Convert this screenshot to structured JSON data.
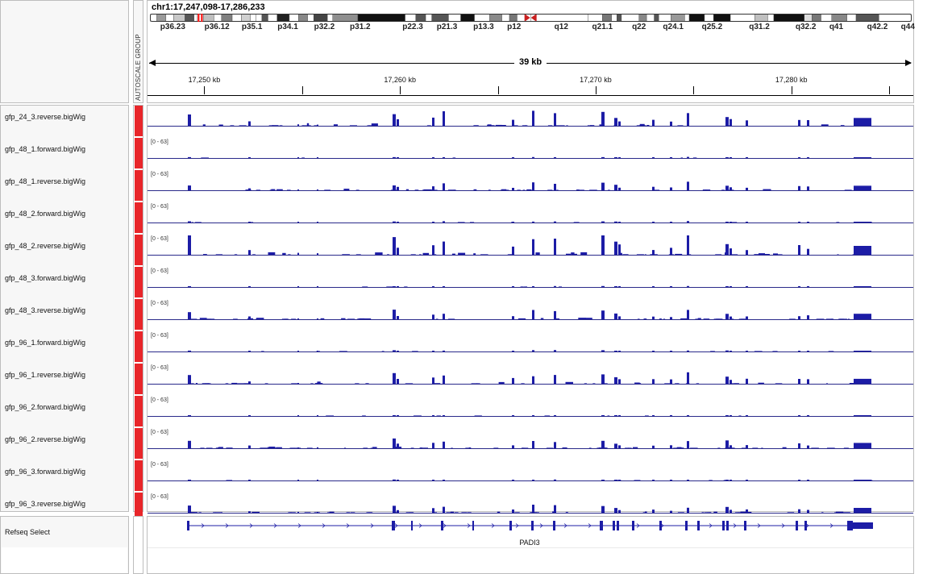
{
  "header": {
    "locus": "chr1:17,247,098-17,286,233",
    "attribute_header": "AUTOSCALE GROUP",
    "span_label": "39 kb",
    "region_start": 17247098,
    "region_end": 17286233,
    "ticks": [
      {
        "pos": 17250000,
        "label": "17,250 kb"
      },
      {
        "pos": 17255000,
        "label": ""
      },
      {
        "pos": 17260000,
        "label": "17,260 kb"
      },
      {
        "pos": 17265000,
        "label": ""
      },
      {
        "pos": 17270000,
        "label": "17,270 kb"
      },
      {
        "pos": 17275000,
        "label": ""
      },
      {
        "pos": 17280000,
        "label": "17,280 kb"
      },
      {
        "pos": 17285000,
        "label": ""
      }
    ]
  },
  "ideogram": {
    "bands": [
      {
        "f": 0.0,
        "w": 0.009,
        "c": "#ffffff"
      },
      {
        "f": 0.009,
        "w": 0.012,
        "c": "#9a9a9a"
      },
      {
        "f": 0.021,
        "w": 0.01,
        "c": "#ffffff"
      },
      {
        "f": 0.031,
        "w": 0.015,
        "c": "#c8c8c8"
      },
      {
        "f": 0.046,
        "w": 0.012,
        "c": "#555555"
      },
      {
        "f": 0.062,
        "w": 0.008,
        "c": "#ffffff"
      },
      {
        "f": 0.07,
        "w": 0.014,
        "c": "#bfbfbf"
      },
      {
        "f": 0.084,
        "w": 0.01,
        "c": "#ffffff"
      },
      {
        "f": 0.094,
        "w": 0.014,
        "c": "#808080"
      },
      {
        "f": 0.108,
        "w": 0.012,
        "c": "#ffffff"
      },
      {
        "f": 0.12,
        "w": 0.012,
        "c": "#d0d0d0"
      },
      {
        "f": 0.132,
        "w": 0.007,
        "c": "#ffffff"
      },
      {
        "f": 0.139,
        "w": 0.008,
        "c": "#ffffff"
      },
      {
        "f": 0.147,
        "w": 0.008,
        "c": "#555555"
      },
      {
        "f": 0.155,
        "w": 0.012,
        "c": "#ffffff"
      },
      {
        "f": 0.167,
        "w": 0.016,
        "c": "#222222"
      },
      {
        "f": 0.183,
        "w": 0.012,
        "c": "#ffffff"
      },
      {
        "f": 0.195,
        "w": 0.012,
        "c": "#888888"
      },
      {
        "f": 0.207,
        "w": 0.008,
        "c": "#ffffff"
      },
      {
        "f": 0.215,
        "w": 0.018,
        "c": "#444444"
      },
      {
        "f": 0.233,
        "w": 0.007,
        "c": "#ffffff"
      },
      {
        "f": 0.24,
        "w": 0.033,
        "c": "#8f8f8f"
      },
      {
        "f": 0.273,
        "w": 0.062,
        "c": "#111111"
      },
      {
        "f": 0.335,
        "w": 0.014,
        "c": "#ffffff"
      },
      {
        "f": 0.349,
        "w": 0.013,
        "c": "#555555"
      },
      {
        "f": 0.362,
        "w": 0.008,
        "c": "#ffffff"
      },
      {
        "f": 0.37,
        "w": 0.022,
        "c": "#555555"
      },
      {
        "f": 0.392,
        "w": 0.016,
        "c": "#ffffff"
      },
      {
        "f": 0.408,
        "w": 0.018,
        "c": "#111111"
      },
      {
        "f": 0.426,
        "w": 0.02,
        "c": "#ffffff"
      },
      {
        "f": 0.446,
        "w": 0.016,
        "c": "#8a8a8a"
      },
      {
        "f": 0.462,
        "w": 0.01,
        "c": "#ffffff"
      },
      {
        "f": 0.472,
        "w": 0.01,
        "c": "#777777"
      },
      {
        "f": 0.5,
        "w": 0.075,
        "c": "#ffffff"
      },
      {
        "f": 0.575,
        "w": 0.019,
        "c": "#ffffff"
      },
      {
        "f": 0.594,
        "w": 0.012,
        "c": "#777777"
      },
      {
        "f": 0.606,
        "w": 0.007,
        "c": "#ffffff"
      },
      {
        "f": 0.613,
        "w": 0.006,
        "c": "#555555"
      },
      {
        "f": 0.619,
        "w": 0.023,
        "c": "#ffffff"
      },
      {
        "f": 0.642,
        "w": 0.01,
        "c": "#888888"
      },
      {
        "f": 0.652,
        "w": 0.01,
        "c": "#ffffff"
      },
      {
        "f": 0.662,
        "w": 0.006,
        "c": "#555555"
      },
      {
        "f": 0.668,
        "w": 0.016,
        "c": "#ffffff"
      },
      {
        "f": 0.684,
        "w": 0.018,
        "c": "#999999"
      },
      {
        "f": 0.702,
        "w": 0.006,
        "c": "#ffffff"
      },
      {
        "f": 0.708,
        "w": 0.02,
        "c": "#111111"
      },
      {
        "f": 0.728,
        "w": 0.012,
        "c": "#ffffff"
      },
      {
        "f": 0.74,
        "w": 0.022,
        "c": "#111111"
      },
      {
        "f": 0.762,
        "w": 0.032,
        "c": "#ffffff"
      },
      {
        "f": 0.794,
        "w": 0.017,
        "c": "#c0c0c0"
      },
      {
        "f": 0.811,
        "w": 0.008,
        "c": "#ffffff"
      },
      {
        "f": 0.819,
        "w": 0.04,
        "c": "#111111"
      },
      {
        "f": 0.859,
        "w": 0.01,
        "c": "#dddddd"
      },
      {
        "f": 0.869,
        "w": 0.012,
        "c": "#777777"
      },
      {
        "f": 0.881,
        "w": 0.014,
        "c": "#ffffff"
      },
      {
        "f": 0.895,
        "w": 0.02,
        "c": "#888888"
      },
      {
        "f": 0.915,
        "w": 0.012,
        "c": "#ffffff"
      },
      {
        "f": 0.927,
        "w": 0.03,
        "c": "#555555"
      },
      {
        "f": 0.957,
        "w": 0.043,
        "c": "#ffffff"
      }
    ],
    "centromere_f": 0.497,
    "current_f": 0.066,
    "labels": [
      {
        "f": 0.03,
        "t": "p36.23"
      },
      {
        "f": 0.088,
        "t": "p36.12"
      },
      {
        "f": 0.134,
        "t": "p35.1"
      },
      {
        "f": 0.181,
        "t": "p34.1"
      },
      {
        "f": 0.229,
        "t": "p32.2"
      },
      {
        "f": 0.276,
        "t": "p31.2"
      },
      {
        "f": 0.345,
        "t": "p22.3"
      },
      {
        "f": 0.39,
        "t": "p21.3"
      },
      {
        "f": 0.438,
        "t": "p13.3"
      },
      {
        "f": 0.478,
        "t": "p12"
      },
      {
        "f": 0.54,
        "t": "q12"
      },
      {
        "f": 0.594,
        "t": "q21.1"
      },
      {
        "f": 0.642,
        "t": "q22"
      },
      {
        "f": 0.687,
        "t": "q24.1"
      },
      {
        "f": 0.738,
        "t": "q25.2"
      },
      {
        "f": 0.8,
        "t": "q31.2"
      },
      {
        "f": 0.861,
        "t": "q32.2"
      },
      {
        "f": 0.901,
        "t": "q41"
      },
      {
        "f": 0.955,
        "t": "q42.2"
      },
      {
        "f": 0.995,
        "t": "q44"
      }
    ]
  },
  "colors": {
    "signal": "#1c1ca6",
    "attribute": "#e8262a",
    "gene": "#1c1ca6",
    "axis": "#2a2a8a"
  },
  "peak_map": [
    {
      "x": 50,
      "w": 4,
      "h": 1.0
    },
    {
      "x": 125,
      "w": 3,
      "h": 0.3
    },
    {
      "x": 186,
      "w": 2,
      "h": 0.1
    },
    {
      "x": 210,
      "w": 2,
      "h": 0.1
    },
    {
      "x": 304,
      "w": 4,
      "h": 1.0
    },
    {
      "x": 309,
      "w": 3,
      "h": 0.5
    },
    {
      "x": 353,
      "w": 3,
      "h": 0.6
    },
    {
      "x": 366,
      "w": 3,
      "h": 1.0
    },
    {
      "x": 452,
      "w": 3,
      "h": 0.5
    },
    {
      "x": 477,
      "w": 3,
      "h": 1.0
    },
    {
      "x": 504,
      "w": 3,
      "h": 1.0
    },
    {
      "x": 563,
      "w": 4,
      "h": 1.0
    },
    {
      "x": 579,
      "w": 4,
      "h": 0.7
    },
    {
      "x": 584,
      "w": 3,
      "h": 0.5
    },
    {
      "x": 626,
      "w": 3,
      "h": 0.4
    },
    {
      "x": 648,
      "w": 3,
      "h": 0.35
    },
    {
      "x": 669,
      "w": 3,
      "h": 1.0
    },
    {
      "x": 717,
      "w": 4,
      "h": 0.8
    },
    {
      "x": 722,
      "w": 3,
      "h": 0.5
    },
    {
      "x": 742,
      "w": 3,
      "h": 0.4
    },
    {
      "x": 807,
      "w": 3,
      "h": 0.5
    },
    {
      "x": 818,
      "w": 3,
      "h": 0.5
    },
    {
      "x": 876,
      "w": 22,
      "h": 0.55
    }
  ],
  "tracks": [
    {
      "name": "gfp_24_3.reverse.bigWig",
      "range": "",
      "scale": 0.6,
      "density": 0.7
    },
    {
      "name": "gfp_48_1.forward.bigWig",
      "range": "[0 - 63]",
      "scale": 0.05,
      "density": 0.1
    },
    {
      "name": "gfp_48_1.reverse.bigWig",
      "range": "[0 - 63]",
      "scale": 0.35,
      "density": 0.7
    },
    {
      "name": "gfp_48_2.forward.bigWig",
      "range": "[0 - 63]",
      "scale": 0.06,
      "density": 0.2
    },
    {
      "name": "gfp_48_2.reverse.bigWig",
      "range": "[0 - 63]",
      "scale": 0.85,
      "density": 0.8
    },
    {
      "name": "gfp_48_3.forward.bigWig",
      "range": "[0 - 63]",
      "scale": 0.04,
      "density": 0.1
    },
    {
      "name": "gfp_48_3.reverse.bigWig",
      "range": "[0 - 63]",
      "scale": 0.4,
      "density": 0.8
    },
    {
      "name": "gfp_96_1.forward.bigWig",
      "range": "[0 - 63]",
      "scale": 0.06,
      "density": 0.15
    },
    {
      "name": "gfp_96_1.reverse.bigWig",
      "range": "[0 - 63]",
      "scale": 0.5,
      "density": 0.8
    },
    {
      "name": "gfp_96_2.forward.bigWig",
      "range": "[0 - 63]",
      "scale": 0.04,
      "density": 0.15
    },
    {
      "name": "gfp_96_2.reverse.bigWig",
      "range": "[0 - 63]",
      "scale": 0.4,
      "density": 0.9
    },
    {
      "name": "gfp_96_3.forward.bigWig",
      "range": "[0 - 63]",
      "scale": 0.04,
      "density": 0.1
    },
    {
      "name": "gfp_96_3.reverse.bigWig",
      "range": "[0 - 63]",
      "scale": 0.35,
      "density": 0.9
    }
  ],
  "feature_track": {
    "name": "Refseq Select",
    "gene": "PADI3",
    "gene_start_x": 49,
    "gene_end_x": 899,
    "strand": "+",
    "exons": [
      {
        "x": 49,
        "w": 3
      },
      {
        "x": 303,
        "w": 4
      },
      {
        "x": 327,
        "w": 2
      },
      {
        "x": 364,
        "w": 3
      },
      {
        "x": 403,
        "w": 2
      },
      {
        "x": 449,
        "w": 3
      },
      {
        "x": 476,
        "w": 3
      },
      {
        "x": 503,
        "w": 3
      },
      {
        "x": 561,
        "w": 4
      },
      {
        "x": 577,
        "w": 3
      },
      {
        "x": 582,
        "w": 3
      },
      {
        "x": 601,
        "w": 3
      },
      {
        "x": 635,
        "w": 3
      },
      {
        "x": 667,
        "w": 3
      },
      {
        "x": 682,
        "w": 3
      },
      {
        "x": 713,
        "w": 3
      },
      {
        "x": 718,
        "w": 3
      },
      {
        "x": 740,
        "w": 3
      },
      {
        "x": 804,
        "w": 3
      },
      {
        "x": 815,
        "w": 3
      },
      {
        "x": 868,
        "w": 32,
        "utr_start": 7
      }
    ]
  }
}
